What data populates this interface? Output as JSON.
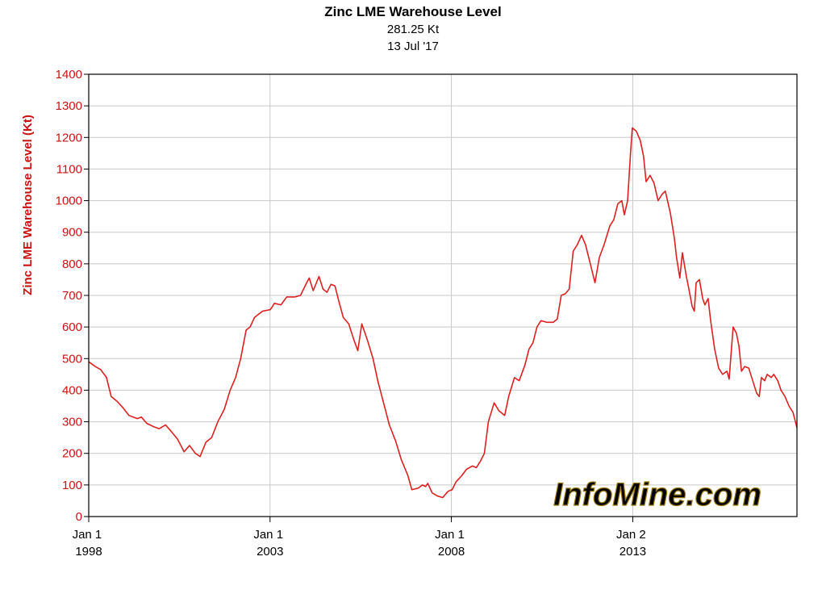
{
  "chart_data": {
    "type": "line",
    "title": "Zinc LME Warehouse Level",
    "subtitle": [
      "281.25 Kt",
      "13 Jul '17"
    ],
    "ylabel": "Zinc LME Warehouse Level (Kt)",
    "watermark": "InfoMine.com",
    "color": "#dd2020",
    "grid": true,
    "xlim": [
      1998,
      2017.53
    ],
    "ylim": [
      0,
      1400
    ],
    "yticks": [
      0,
      100,
      200,
      300,
      400,
      500,
      600,
      700,
      800,
      900,
      1000,
      1100,
      1200,
      1300,
      1400
    ],
    "xticks": [
      {
        "value": 1998,
        "label": "Jan 1 1998"
      },
      {
        "value": 2003,
        "label": "Jan 1 2003"
      },
      {
        "value": 2008,
        "label": "Jan 1 2008"
      },
      {
        "value": 2013.003,
        "label": "Jan 2 2013"
      }
    ],
    "x": [
      1998.0,
      1998.18,
      1998.33,
      1998.49,
      1998.62,
      1998.78,
      1998.94,
      1999.11,
      1999.34,
      1999.45,
      1999.6,
      1999.78,
      1999.94,
      2000.12,
      2000.27,
      2000.45,
      2000.63,
      2000.78,
      2000.94,
      2001.07,
      2001.23,
      2001.39,
      2001.56,
      2001.74,
      2001.9,
      2002.05,
      2002.19,
      2002.34,
      2002.45,
      2002.57,
      2002.79,
      2003.01,
      2003.12,
      2003.3,
      2003.46,
      2003.68,
      2003.84,
      2004.01,
      2004.08,
      2004.19,
      2004.35,
      2004.46,
      2004.57,
      2004.68,
      2004.79,
      2004.9,
      2005.02,
      2005.17,
      2005.31,
      2005.42,
      2005.53,
      2005.68,
      2005.84,
      2005.97,
      2006.13,
      2006.29,
      2006.46,
      2006.62,
      2006.8,
      2006.91,
      2007.09,
      2007.2,
      2007.29,
      2007.35,
      2007.47,
      2007.62,
      2007.76,
      2007.91,
      2008.02,
      2008.13,
      2008.29,
      2008.42,
      2008.58,
      2008.69,
      2008.8,
      2008.91,
      2009.02,
      2009.18,
      2009.31,
      2009.47,
      2009.58,
      2009.74,
      2009.87,
      2010.03,
      2010.14,
      2010.25,
      2010.36,
      2010.47,
      2010.63,
      2010.81,
      2010.92,
      2011.03,
      2011.14,
      2011.25,
      2011.36,
      2011.47,
      2011.59,
      2011.7,
      2011.81,
      2011.96,
      2012.08,
      2012.21,
      2012.37,
      2012.48,
      2012.59,
      2012.7,
      2012.77,
      2012.86,
      2012.94,
      2012.99,
      2013.1,
      2013.21,
      2013.3,
      2013.37,
      2013.48,
      2013.59,
      2013.7,
      2013.81,
      2013.9,
      2014.04,
      2014.15,
      2014.21,
      2014.3,
      2014.37,
      2014.48,
      2014.55,
      2014.64,
      2014.7,
      2014.75,
      2014.84,
      2014.93,
      2014.99,
      2015.08,
      2015.15,
      2015.26,
      2015.37,
      2015.48,
      2015.6,
      2015.66,
      2015.77,
      2015.86,
      2015.93,
      2016.0,
      2016.09,
      2016.2,
      2016.31,
      2016.42,
      2016.49,
      2016.55,
      2016.64,
      2016.71,
      2016.82,
      2016.89,
      2017.0,
      2017.09,
      2017.2,
      2017.31,
      2017.42,
      2017.53
    ],
    "values": [
      490,
      475,
      465,
      440,
      380,
      365,
      345,
      320,
      310,
      315,
      295,
      285,
      278,
      290,
      270,
      245,
      205,
      225,
      200,
      190,
      235,
      250,
      300,
      340,
      400,
      440,
      500,
      590,
      600,
      630,
      650,
      655,
      675,
      670,
      695,
      695,
      700,
      740,
      755,
      715,
      760,
      720,
      710,
      735,
      730,
      680,
      630,
      610,
      560,
      525,
      610,
      560,
      500,
      430,
      360,
      290,
      240,
      180,
      130,
      85,
      90,
      100,
      95,
      105,
      75,
      65,
      60,
      80,
      85,
      110,
      130,
      150,
      160,
      155,
      175,
      200,
      300,
      360,
      335,
      320,
      380,
      440,
      430,
      480,
      530,
      550,
      600,
      620,
      615,
      615,
      625,
      700,
      705,
      720,
      840,
      860,
      890,
      860,
      810,
      740,
      820,
      860,
      920,
      940,
      990,
      1000,
      955,
      1000,
      1150,
      1230,
      1220,
      1190,
      1140,
      1060,
      1080,
      1055,
      1000,
      1020,
      1030,
      960,
      880,
      820,
      755,
      835,
      760,
      720,
      665,
      650,
      740,
      750,
      690,
      670,
      690,
      620,
      530,
      470,
      450,
      460,
      435,
      600,
      580,
      540,
      460,
      475,
      470,
      430,
      390,
      380,
      440,
      430,
      450,
      440,
      450,
      430,
      400,
      380,
      350,
      330,
      281.25
    ]
  }
}
